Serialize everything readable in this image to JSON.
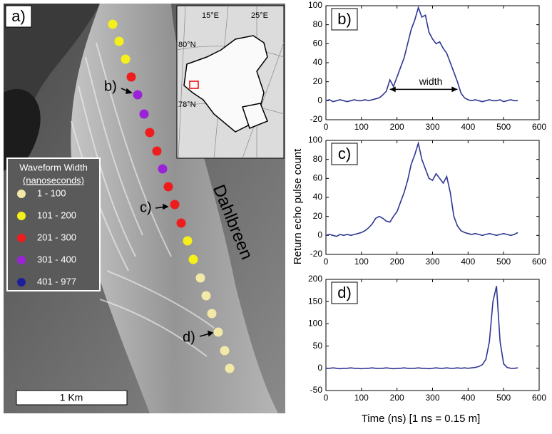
{
  "map": {
    "panel_label": "a)",
    "place_label": "Dahlbreen",
    "point_labels": [
      "b)",
      "c)",
      "d)"
    ],
    "scale_label": "1 Km",
    "inset_labels": [
      "15°E",
      "25°E",
      "80°N",
      "78°N"
    ],
    "legend": {
      "title": "Waveform Width",
      "subtitle": "(nanoseconds)",
      "items": [
        {
          "label": "1 - 100",
          "color": "#f3e9a6"
        },
        {
          "label": "101 - 200",
          "color": "#f5ef1a"
        },
        {
          "label": "201 - 300",
          "color": "#ee1c1c"
        },
        {
          "label": "301 - 400",
          "color": "#9b22d8"
        },
        {
          "label": "401 - 977",
          "color": "#1c1e9a"
        }
      ]
    }
  },
  "shared_ylabel": "Return  echo pulse count",
  "shared_xlabel": "Time (ns) [1 ns = 0.15 m]",
  "chart_data": [
    {
      "type": "line",
      "panel_label": "b)",
      "color": "#2e3592",
      "annotation": {
        "text": "width",
        "x_from": 180,
        "x_to": 370,
        "y": 12
      },
      "x": [
        0,
        10,
        20,
        30,
        40,
        50,
        60,
        70,
        80,
        90,
        100,
        110,
        120,
        130,
        140,
        150,
        160,
        170,
        180,
        190,
        200,
        210,
        220,
        230,
        240,
        250,
        260,
        270,
        280,
        290,
        300,
        310,
        320,
        330,
        340,
        350,
        360,
        370,
        380,
        390,
        400,
        410,
        420,
        430,
        440,
        450,
        460,
        470,
        480,
        490,
        500,
        510,
        520,
        530,
        540
      ],
      "values": [
        0,
        1,
        -1,
        0,
        1,
        0,
        -1,
        0,
        1,
        0,
        0,
        1,
        0,
        1,
        2,
        3,
        6,
        10,
        22,
        15,
        25,
        35,
        45,
        60,
        75,
        85,
        98,
        88,
        90,
        72,
        65,
        60,
        62,
        55,
        50,
        40,
        30,
        20,
        8,
        3,
        1,
        0,
        1,
        0,
        -1,
        0,
        1,
        0,
        0,
        1,
        -1,
        0,
        1,
        0,
        0
      ],
      "xlim": [
        0,
        600
      ],
      "xticks": [
        0,
        100,
        200,
        300,
        400,
        500,
        600
      ],
      "ylim": [
        -20,
        100
      ],
      "yticks": [
        -20,
        0,
        20,
        40,
        60,
        80,
        100
      ]
    },
    {
      "type": "line",
      "panel_label": "c)",
      "color": "#2e3592",
      "x": [
        0,
        10,
        20,
        30,
        40,
        50,
        60,
        70,
        80,
        90,
        100,
        110,
        120,
        130,
        140,
        150,
        160,
        170,
        180,
        190,
        200,
        210,
        220,
        230,
        240,
        250,
        260,
        270,
        280,
        290,
        300,
        310,
        320,
        330,
        340,
        350,
        360,
        370,
        380,
        390,
        400,
        410,
        420,
        430,
        440,
        450,
        460,
        470,
        480,
        490,
        500,
        510,
        520,
        530,
        540
      ],
      "values": [
        0,
        1,
        0,
        -1,
        1,
        0,
        1,
        0,
        1,
        2,
        3,
        5,
        8,
        12,
        18,
        20,
        18,
        15,
        14,
        20,
        25,
        35,
        45,
        58,
        75,
        85,
        97,
        80,
        70,
        60,
        58,
        65,
        60,
        55,
        62,
        45,
        20,
        10,
        5,
        3,
        2,
        1,
        2,
        1,
        0,
        1,
        2,
        1,
        0,
        1,
        2,
        1,
        0,
        1,
        3
      ],
      "xlim": [
        0,
        600
      ],
      "xticks": [
        0,
        100,
        200,
        300,
        400,
        500,
        600
      ],
      "ylim": [
        -20,
        100
      ],
      "yticks": [
        -20,
        0,
        20,
        40,
        60,
        80,
        100
      ]
    },
    {
      "type": "line",
      "panel_label": "d)",
      "color": "#2e3592",
      "x": [
        0,
        10,
        20,
        30,
        40,
        50,
        60,
        70,
        80,
        90,
        100,
        110,
        120,
        130,
        140,
        150,
        160,
        170,
        180,
        190,
        200,
        210,
        220,
        230,
        240,
        250,
        260,
        270,
        280,
        290,
        300,
        310,
        320,
        330,
        340,
        350,
        360,
        370,
        380,
        390,
        400,
        410,
        420,
        430,
        440,
        450,
        460,
        470,
        480,
        490,
        500,
        510,
        520,
        530,
        540
      ],
      "values": [
        0,
        0,
        1,
        0,
        -1,
        0,
        0,
        1,
        0,
        0,
        -1,
        0,
        0,
        1,
        0,
        0,
        0,
        1,
        0,
        -1,
        0,
        0,
        1,
        0,
        0,
        0,
        1,
        0,
        0,
        -1,
        0,
        1,
        0,
        0,
        1,
        0,
        0,
        1,
        0,
        1,
        0,
        1,
        2,
        4,
        8,
        20,
        60,
        150,
        185,
        60,
        10,
        2,
        0,
        0,
        1
      ],
      "xlim": [
        0,
        600
      ],
      "xticks": [
        0,
        100,
        200,
        300,
        400,
        500,
        600
      ],
      "ylim": [
        -50,
        200
      ],
      "yticks": [
        -50,
        0,
        50,
        100,
        150,
        200
      ]
    }
  ]
}
